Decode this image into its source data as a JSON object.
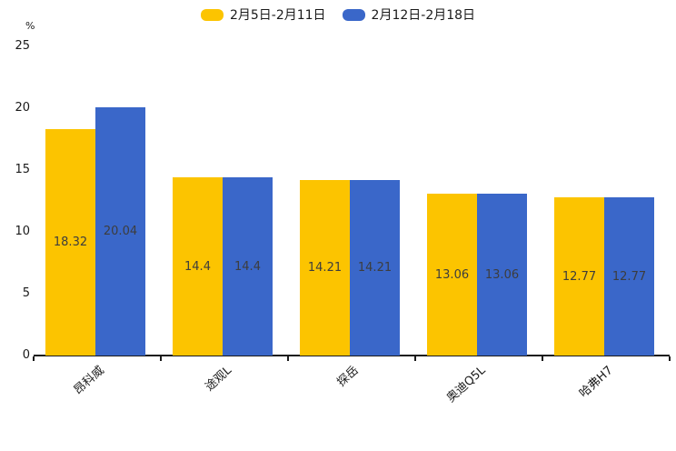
{
  "chart_data": {
    "type": "bar",
    "title": "",
    "unit_label": "%",
    "categories": [
      "昂科威",
      "途观L",
      "探岳",
      "奥迪Q5L",
      "哈弗H7"
    ],
    "series": [
      {
        "name": "2月5日-2月11日",
        "color": "#FCC400",
        "values": [
          18.32,
          14.4,
          14.21,
          13.06,
          12.77
        ]
      },
      {
        "name": "2月12日-2月18日",
        "color": "#3A67C9",
        "values": [
          20.04,
          14.4,
          14.21,
          13.06,
          12.77
        ]
      }
    ],
    "value_label_texts": [
      [
        "18.32",
        "14.4",
        "14.21",
        "13.06",
        "12.77"
      ],
      [
        "20.04",
        "14.4",
        "14.21",
        "13.06",
        "12.77"
      ]
    ],
    "ylabel": "",
    "xlabel": "",
    "ylim": [
      0,
      25
    ],
    "yticks": [
      0,
      5,
      10,
      15,
      20,
      25
    ],
    "grid": false,
    "legend_position": "top-center",
    "value_labels_shown": true,
    "x_label_rotation_deg": 42
  }
}
